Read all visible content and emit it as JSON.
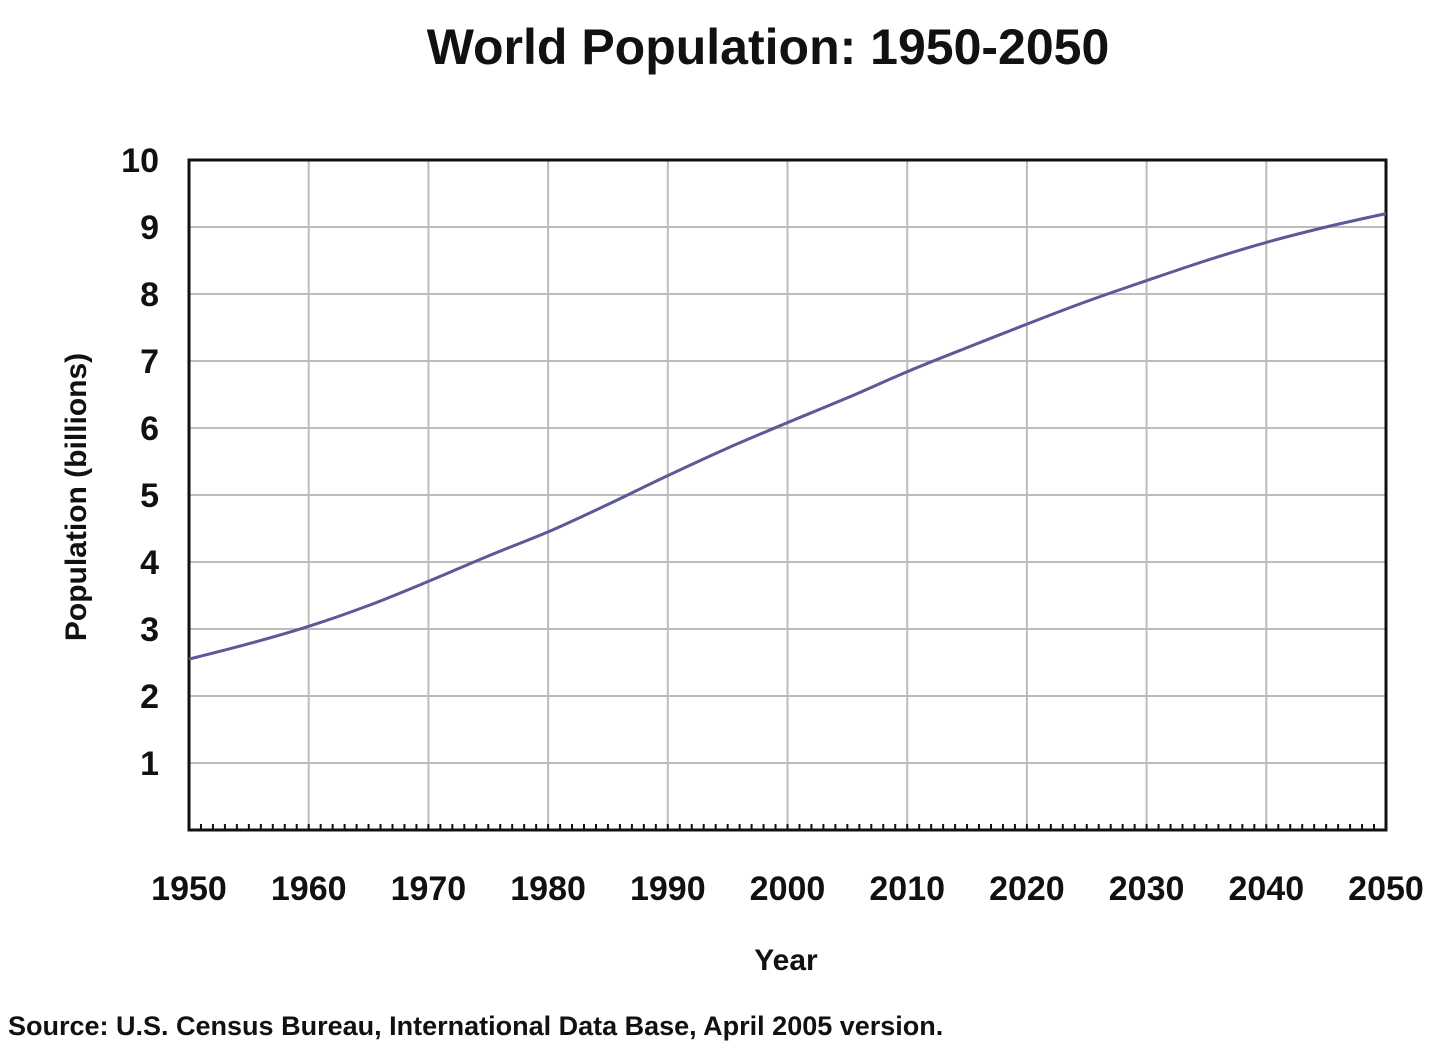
{
  "chart_data": {
    "type": "line",
    "title": "World Population: 1950-2050",
    "xlabel": "Year",
    "ylabel": "Population (billions)",
    "source": "Source: U.S. Census Bureau, International Data Base, April 2005 version.",
    "xlim": [
      1950,
      2050
    ],
    "ylim": [
      0,
      10
    ],
    "x_ticks": [
      1950,
      1960,
      1970,
      1980,
      1990,
      2000,
      2010,
      2020,
      2030,
      2040,
      2050
    ],
    "y_ticks": [
      1,
      2,
      3,
      4,
      5,
      6,
      7,
      8,
      9,
      10
    ],
    "grid": true,
    "legend": "none",
    "line_color": "#5a5a96",
    "series": [
      {
        "x": [
          1950,
          1955,
          1960,
          1965,
          1970,
          1975,
          1980,
          1985,
          1990,
          1995,
          2000,
          2005,
          2010,
          2015,
          2020,
          2025,
          2030,
          2035,
          2040,
          2045,
          2050
        ],
        "values": [
          2.55,
          2.78,
          3.04,
          3.35,
          3.71,
          4.09,
          4.45,
          4.86,
          5.29,
          5.7,
          6.08,
          6.45,
          6.84,
          7.2,
          7.55,
          7.89,
          8.2,
          8.5,
          8.77,
          9.0,
          9.2
        ]
      }
    ]
  }
}
